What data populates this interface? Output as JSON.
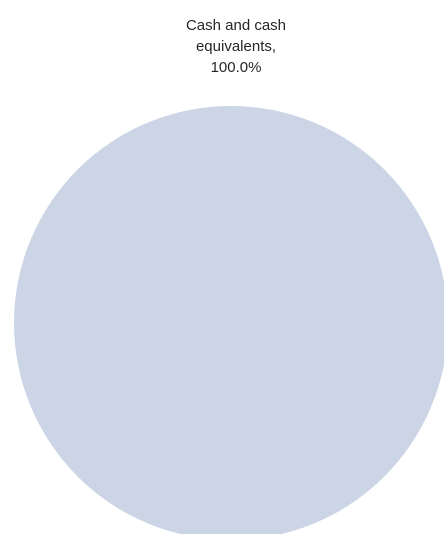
{
  "chart_data": {
    "type": "pie",
    "title": "",
    "slices": [
      {
        "label_lines": [
          "Cash and cash",
          "equivalents,",
          "100.0%"
        ],
        "category": "Cash and cash equivalents",
        "value": 100.0,
        "color": "#cbd5e6"
      }
    ],
    "legend": "none"
  }
}
